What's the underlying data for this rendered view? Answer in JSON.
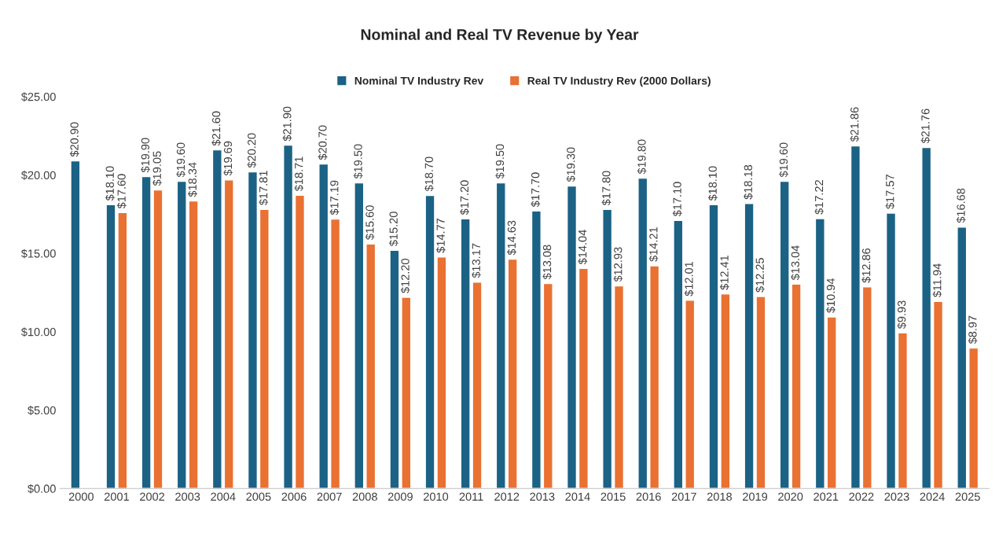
{
  "chart_data": {
    "type": "bar",
    "title": "Nominal and Real TV Revenue by Year",
    "categories": [
      "2000",
      "2001",
      "2002",
      "2003",
      "2004",
      "2005",
      "2006",
      "2007",
      "2008",
      "2009",
      "2010",
      "2011",
      "2012",
      "2013",
      "2014",
      "2015",
      "2016",
      "2017",
      "2018",
      "2019",
      "2020",
      "2021",
      "2022",
      "2023",
      "2024",
      "2025"
    ],
    "series": [
      {
        "name": "Nominal TV Industry Rev",
        "color": "#1b6285",
        "values": [
          20.9,
          18.1,
          19.9,
          19.6,
          21.6,
          20.2,
          21.9,
          20.7,
          19.5,
          15.2,
          18.7,
          17.2,
          19.5,
          17.7,
          19.3,
          17.8,
          19.8,
          17.1,
          18.1,
          18.18,
          19.6,
          17.22,
          21.86,
          17.57,
          21.76,
          16.68
        ],
        "value_labels": [
          "$20.90",
          "$18.10",
          "$19.90",
          "$19.60",
          "$21.60",
          "$20.20",
          "$21.90",
          "$20.70",
          "$19.50",
          "$15.20",
          "$18.70",
          "$17.20",
          "$19.50",
          "$17.70",
          "$19.30",
          "$17.80",
          "$19.80",
          "$17.10",
          "$18.10",
          "$18.18",
          "$19.60",
          "$17.22",
          "$21.86",
          "$17.57",
          "$21.76",
          "$16.68"
        ]
      },
      {
        "name": "Real TV Industry Rev (2000 Dollars)",
        "color": "#e97132",
        "values": [
          null,
          17.6,
          19.05,
          18.34,
          19.69,
          17.81,
          18.71,
          17.19,
          15.6,
          12.2,
          14.77,
          13.17,
          14.63,
          13.08,
          14.04,
          12.93,
          14.21,
          12.01,
          12.41,
          12.25,
          13.04,
          10.94,
          12.86,
          9.93,
          11.94,
          8.97
        ],
        "value_labels": [
          null,
          "$17.60",
          "$19.05",
          "$18.34",
          "$19.69",
          "$17.81",
          "$18.71",
          "$17.19",
          "$15.60",
          "$12.20",
          "$14.77",
          "$13.17",
          "$14.63",
          "$13.08",
          "$14.04",
          "$12.93",
          "$14.21",
          "$12.01",
          "$12.41",
          "$12.25",
          "$13.04",
          "$10.94",
          "$12.86",
          "$9.93",
          "$11.94",
          "$8.97"
        ]
      }
    ],
    "ylim": [
      0,
      25
    ],
    "yticks": [
      {
        "value": 0,
        "label": "$0.00"
      },
      {
        "value": 5,
        "label": "$5.00"
      },
      {
        "value": 10,
        "label": "$10.00"
      },
      {
        "value": 15,
        "label": "$15.00"
      },
      {
        "value": 20,
        "label": "$20.00"
      },
      {
        "value": 25,
        "label": "$25.00"
      }
    ],
    "legend": "top",
    "grid": false
  }
}
